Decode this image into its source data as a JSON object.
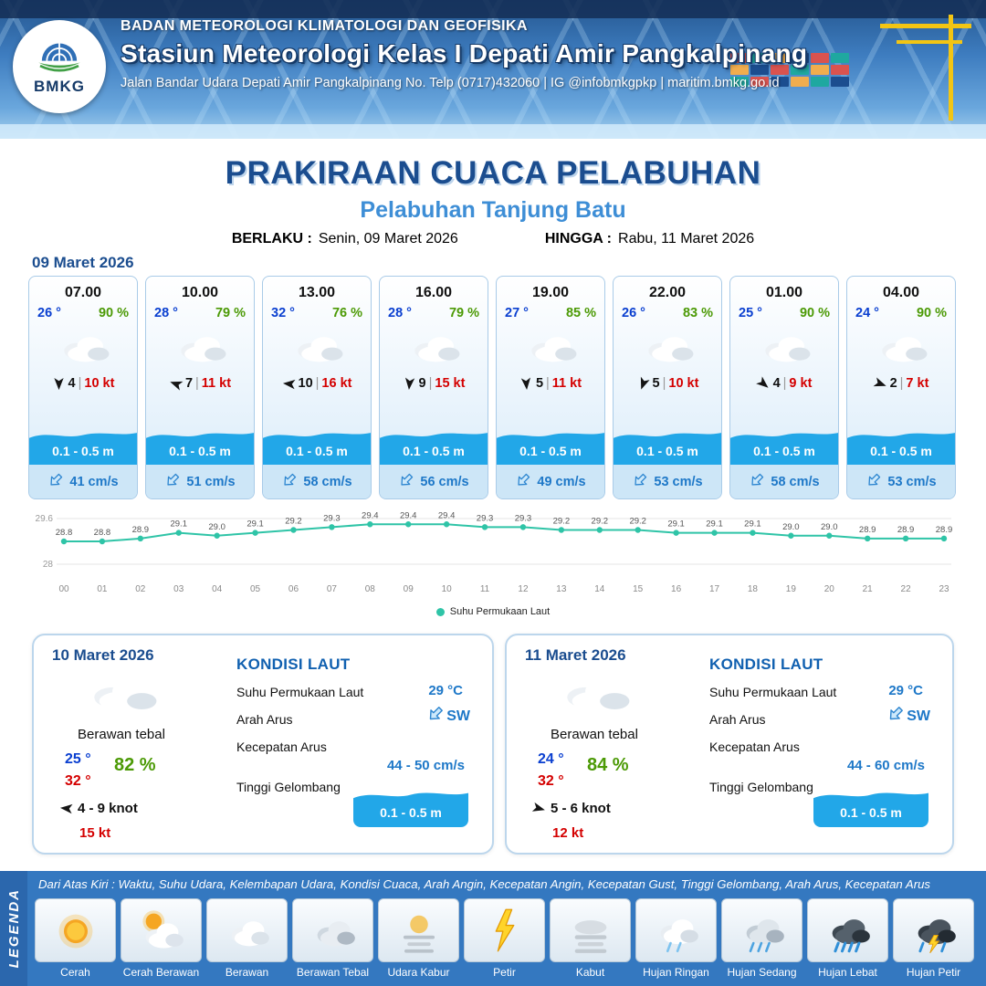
{
  "header": {
    "agency": "BADAN METEOROLOGI KLIMATOLOGI DAN GEOFISIKA",
    "station": "Stasiun Meteorologi Kelas I Depati Amir Pangkalpinang",
    "address": "Jalan Bandar Udara Depati Amir Pangkalpinang No. Telp (0717)432060 | IG @infobmkgpkp | maritim.bmkg.go.id",
    "logo_text": "BMKG"
  },
  "title": {
    "main": "PRAKIRAAN CUACA PELABUHAN",
    "port": "Pelabuhan Tanjung Batu",
    "valid_label": "BERLAKU :",
    "valid_value": "Senin, 09 Maret 2026",
    "until_label": "HINGGA :",
    "until_value": "Rabu, 11 Maret 2026"
  },
  "forecast": {
    "date": "09 Maret 2026",
    "cards": [
      {
        "time": "07.00",
        "temp": "26 °",
        "rh": "90 %",
        "icon": "berawan",
        "wind_dir_deg": 90,
        "wind": "4",
        "wind_kt": "10 kt",
        "wave": "0.1 - 0.5 m",
        "current": "41 cm/s"
      },
      {
        "time": "10.00",
        "temp": "28 °",
        "rh": "79 %",
        "icon": "berawan",
        "wind_dir_deg": 200,
        "wind": "7",
        "wind_kt": "11 kt",
        "wave": "0.1 - 0.5 m",
        "current": "51 cm/s"
      },
      {
        "time": "13.00",
        "temp": "32 °",
        "rh": "76 %",
        "icon": "berawan",
        "wind_dir_deg": 185,
        "wind": "10",
        "wind_kt": "16 kt",
        "wave": "0.1 - 0.5 m",
        "current": "58 cm/s"
      },
      {
        "time": "16.00",
        "temp": "28 °",
        "rh": "79 %",
        "icon": "berawan",
        "wind_dir_deg": 95,
        "wind": "9",
        "wind_kt": "15 kt",
        "wave": "0.1 - 0.5 m",
        "current": "56 cm/s"
      },
      {
        "time": "19.00",
        "temp": "27 °",
        "rh": "85 %",
        "icon": "berawan",
        "wind_dir_deg": 85,
        "wind": "5",
        "wind_kt": "11 kt",
        "wave": "0.1 - 0.5 m",
        "current": "49 cm/s"
      },
      {
        "time": "22.00",
        "temp": "26 °",
        "rh": "83 %",
        "icon": "berawan",
        "wind_dir_deg": 110,
        "wind": "5",
        "wind_kt": "10 kt",
        "wave": "0.1 - 0.5 m",
        "current": "53 cm/s"
      },
      {
        "time": "01.00",
        "temp": "25 °",
        "rh": "90 %",
        "icon": "berawan",
        "wind_dir_deg": 40,
        "wind": "4",
        "wind_kt": "9 kt",
        "wave": "0.1 - 0.5 m",
        "current": "58 cm/s"
      },
      {
        "time": "04.00",
        "temp": "24 °",
        "rh": "90 %",
        "icon": "berawan",
        "wind_dir_deg": 20,
        "wind": "2",
        "wind_kt": "7 kt",
        "wave": "0.1 - 0.5 m",
        "current": "53 cm/s"
      }
    ]
  },
  "chart_data": {
    "type": "line",
    "x_labels": [
      "00",
      "01",
      "02",
      "03",
      "04",
      "05",
      "06",
      "07",
      "08",
      "09",
      "10",
      "11",
      "12",
      "13",
      "14",
      "15",
      "16",
      "17",
      "18",
      "19",
      "20",
      "21",
      "22",
      "23"
    ],
    "series": [
      {
        "name": "Suhu Permukaan Laut",
        "values": [
          28.8,
          28.8,
          28.9,
          29.1,
          29.0,
          29.1,
          29.2,
          29.3,
          29.4,
          29.4,
          29.4,
          29.3,
          29.3,
          29.2,
          29.2,
          29.2,
          29.1,
          29.1,
          29.1,
          29.0,
          29.0,
          28.9,
          28.9,
          28.9
        ]
      }
    ],
    "ylim": [
      28,
      29.6
    ],
    "y_ticks": [
      "29.6",
      "28"
    ],
    "line_color": "#2fc4a7",
    "legend_position": "bottom",
    "grid": true
  },
  "days": [
    {
      "date": "10 Maret 2026",
      "icon": "berawan",
      "cond": "Berawan tebal",
      "tmin": "25 °",
      "tmax": "32 °",
      "rh": "82 %",
      "wind_dir_deg": 185,
      "wind_range": "4 - 9 knot",
      "gust": "15 kt",
      "sea": {
        "title": "KONDISI LAUT",
        "sst_label": "Suhu Permukaan Laut",
        "sst": "29 °C",
        "dir_label": "Arah Arus",
        "dir": "SW",
        "spd_label": "Kecepatan Arus",
        "spd": "44 - 50 cm/s",
        "wave_label": "Tinggi Gelombang",
        "wave": "0.1 - 0.5 m"
      }
    },
    {
      "date": "11 Maret 2026",
      "icon": "berawan",
      "cond": "Berawan tebal",
      "tmin": "24 °",
      "tmax": "32 °",
      "rh": "84 %",
      "wind_dir_deg": 15,
      "wind_range": "5 - 6 knot",
      "gust": "12 kt",
      "sea": {
        "title": "KONDISI LAUT",
        "sst_label": "Suhu Permukaan Laut",
        "sst": "29 °C",
        "dir_label": "Arah Arus",
        "dir": "SW",
        "spd_label": "Kecepatan Arus",
        "spd": "44 - 60 cm/s",
        "wave_label": "Tinggi Gelombang",
        "wave": "0.1 - 0.5 m"
      }
    }
  ],
  "legend": {
    "label": "LEGENDA",
    "description": "Dari Atas Kiri : Waktu, Suhu Udara, Kelembapan Udara, Kondisi Cuaca, Arah Angin, Kecepatan Angin, Kecepatan Gust, Tinggi Gelombang, Arah Arus, Kecepatan Arus",
    "items": [
      {
        "label": "Cerah",
        "icon": "cerah"
      },
      {
        "label": "Cerah Berawan",
        "icon": "cerah-berawan"
      },
      {
        "label": "Berawan",
        "icon": "berawan"
      },
      {
        "label": "Berawan Tebal",
        "icon": "berawan-tebal"
      },
      {
        "label": "Udara Kabur",
        "icon": "udara-kabur"
      },
      {
        "label": "Petir",
        "icon": "petir"
      },
      {
        "label": "Kabut",
        "icon": "kabut"
      },
      {
        "label": "Hujan Ringan",
        "icon": "hujan-ringan"
      },
      {
        "label": "Hujan Sedang",
        "icon": "hujan-sedang"
      },
      {
        "label": "Hujan Lebat",
        "icon": "hujan-lebat"
      },
      {
        "label": "Hujan Petir",
        "icon": "hujan-petir"
      }
    ]
  },
  "colors": {
    "accent_dark_blue": "#1b4d8f",
    "accent_light_blue": "#3e8ed6",
    "wave_blue": "#22a7e8",
    "value_blue": "#1e78c8",
    "temp_blue": "#0a3fd0",
    "temp_red": "#d40000",
    "humidity_green": "#4c9a06",
    "chart_teal": "#2fc4a7",
    "legend_bg": "#3478c0"
  }
}
